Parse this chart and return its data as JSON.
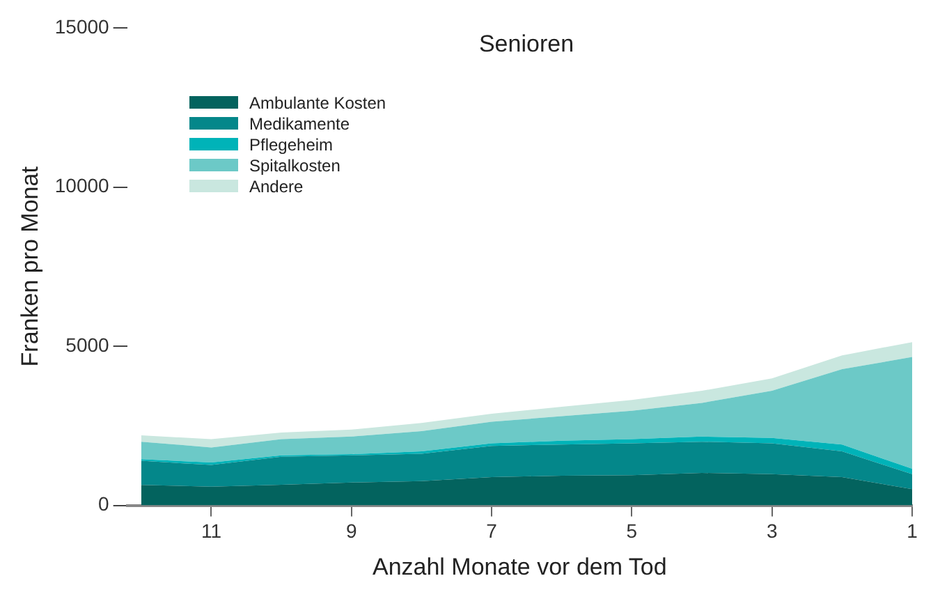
{
  "chart_data": {
    "type": "area",
    "title": "Senioren",
    "xlabel": "Anzahl Monate vor dem Tod",
    "ylabel": "Franken pro Monat",
    "stacked": true,
    "legend": "top left",
    "grid": false,
    "x": [
      12,
      11,
      10,
      9,
      8,
      7,
      6,
      5,
      4,
      3,
      2,
      1
    ],
    "xlim": [
      12.2,
      1
    ],
    "xticks": [
      11,
      9,
      7,
      5,
      3,
      1
    ],
    "ylim": [
      0,
      15000
    ],
    "yticks": [
      0,
      5000,
      10000,
      15000
    ],
    "series": [
      {
        "name": "Ambulante Kosten",
        "color": "#03635e",
        "values": [
          640,
          590,
          650,
          720,
          760,
          890,
          930,
          950,
          1020,
          980,
          890,
          510
        ]
      },
      {
        "name": "Medikamente",
        "color": "#04878a",
        "values": [
          760,
          680,
          880,
          850,
          860,
          980,
          980,
          1000,
          980,
          970,
          810,
          470
        ]
      },
      {
        "name": "Pflegeheim",
        "color": "#00b3b8",
        "values": [
          50,
          80,
          40,
          40,
          80,
          80,
          120,
          130,
          160,
          170,
          210,
          170
        ]
      },
      {
        "name": "Spitalkosten",
        "color": "#6cc9c7",
        "values": [
          550,
          470,
          510,
          550,
          630,
          680,
          770,
          890,
          1060,
          1480,
          2370,
          3510
        ]
      },
      {
        "name": "Andere",
        "color": "#c9e7df",
        "values": [
          200,
          260,
          210,
          220,
          260,
          250,
          300,
          340,
          380,
          390,
          430,
          470
        ]
      }
    ]
  }
}
